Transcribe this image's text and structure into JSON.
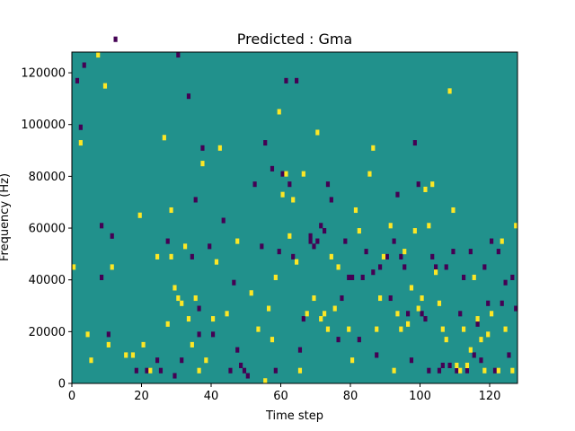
{
  "chart_data": {
    "type": "heatmap",
    "title": "Predicted : Gma",
    "xlabel": "Time step",
    "ylabel": "Frequency (Hz)",
    "xlim": [
      0,
      128
    ],
    "ylim": [
      0,
      128000
    ],
    "x_ticks": [
      0,
      20,
      40,
      60,
      80,
      100,
      120
    ],
    "y_ticks": [
      0,
      20000,
      40000,
      60000,
      80000,
      100000,
      120000
    ],
    "x_tick_labels": [
      "0",
      "20",
      "40",
      "60",
      "80",
      "100",
      "120"
    ],
    "y_tick_labels": [
      "0",
      "20000",
      "40000",
      "60000",
      "80000",
      "100000",
      "120000"
    ],
    "grid": false,
    "legend": "none",
    "colormap": {
      "low": "#440154",
      "mid": "#21918c",
      "high": "#fde725"
    },
    "background_value": 0,
    "bins": {
      "time_steps": 128,
      "freq_bins": 64,
      "freq_bin_hz": 2000
    },
    "cells_low": [
      [
        3,
        61
      ],
      [
        8,
        20
      ],
      [
        10,
        9
      ],
      [
        12,
        66
      ],
      [
        18,
        2
      ],
      [
        21,
        2
      ],
      [
        25,
        2
      ],
      [
        30,
        63
      ],
      [
        31,
        4
      ],
      [
        33,
        55
      ],
      [
        34,
        24
      ],
      [
        36,
        14
      ],
      [
        36,
        9
      ],
      [
        37,
        45
      ],
      [
        39,
        26
      ],
      [
        40,
        9
      ],
      [
        45,
        2
      ],
      [
        47,
        6
      ],
      [
        48,
        3
      ],
      [
        49,
        2
      ],
      [
        52,
        38
      ],
      [
        55,
        46
      ],
      [
        58,
        2
      ],
      [
        59,
        25
      ],
      [
        60,
        40
      ],
      [
        61,
        58
      ],
      [
        62,
        38
      ],
      [
        63,
        24
      ],
      [
        64,
        58
      ],
      [
        65,
        6
      ],
      [
        66,
        12
      ],
      [
        68,
        28
      ],
      [
        68,
        27
      ],
      [
        69,
        26
      ],
      [
        70,
        27
      ],
      [
        71,
        30
      ],
      [
        72,
        29
      ],
      [
        73,
        38
      ],
      [
        74,
        35
      ],
      [
        76,
        8
      ],
      [
        77,
        16
      ],
      [
        78,
        27
      ],
      [
        79,
        20
      ],
      [
        80,
        20
      ],
      [
        82,
        8
      ],
      [
        83,
        20
      ],
      [
        84,
        25
      ],
      [
        87,
        5
      ],
      [
        88,
        22
      ],
      [
        90,
        24
      ],
      [
        91,
        16
      ],
      [
        92,
        27
      ],
      [
        93,
        36
      ],
      [
        94,
        24
      ],
      [
        95,
        22
      ],
      [
        96,
        13
      ],
      [
        97,
        4
      ],
      [
        98,
        46
      ],
      [
        99,
        38
      ],
      [
        100,
        13
      ],
      [
        101,
        12
      ],
      [
        102,
        2
      ],
      [
        103,
        24
      ],
      [
        104,
        22
      ],
      [
        105,
        2
      ],
      [
        106,
        3
      ],
      [
        107,
        22
      ],
      [
        108,
        3
      ],
      [
        109,
        25
      ],
      [
        110,
        2
      ],
      [
        111,
        13
      ],
      [
        112,
        20
      ],
      [
        113,
        2
      ],
      [
        114,
        25
      ],
      [
        115,
        5
      ],
      [
        116,
        11
      ],
      [
        117,
        4
      ],
      [
        118,
        22
      ],
      [
        119,
        15
      ],
      [
        120,
        27
      ],
      [
        121,
        2
      ],
      [
        122,
        25
      ],
      [
        123,
        15
      ],
      [
        124,
        19
      ],
      [
        125,
        5
      ],
      [
        126,
        20
      ],
      [
        127,
        14
      ],
      [
        1,
        58
      ],
      [
        2,
        49
      ],
      [
        8,
        30
      ],
      [
        11,
        28
      ],
      [
        24,
        4
      ],
      [
        27,
        27
      ],
      [
        35,
        35
      ],
      [
        43,
        31
      ],
      [
        46,
        19
      ],
      [
        50,
        1
      ],
      [
        54,
        26
      ],
      [
        57,
        41
      ],
      [
        86,
        21
      ],
      [
        29,
        1
      ]
    ],
    "cells_high": [
      [
        0,
        22
      ],
      [
        2,
        46
      ],
      [
        4,
        9
      ],
      [
        5,
        4
      ],
      [
        9,
        57
      ],
      [
        10,
        7
      ],
      [
        11,
        22
      ],
      [
        15,
        5
      ],
      [
        17,
        5
      ],
      [
        20,
        7
      ],
      [
        22,
        2
      ],
      [
        24,
        24
      ],
      [
        26,
        47
      ],
      [
        27,
        11
      ],
      [
        28,
        24
      ],
      [
        29,
        18
      ],
      [
        30,
        16
      ],
      [
        31,
        15
      ],
      [
        32,
        26
      ],
      [
        33,
        12
      ],
      [
        34,
        7
      ],
      [
        35,
        16
      ],
      [
        36,
        2
      ],
      [
        38,
        4
      ],
      [
        40,
        12
      ],
      [
        42,
        45
      ],
      [
        44,
        13
      ],
      [
        47,
        27
      ],
      [
        51,
        17
      ],
      [
        56,
        14
      ],
      [
        57,
        8
      ],
      [
        58,
        20
      ],
      [
        59,
        52
      ],
      [
        60,
        36
      ],
      [
        61,
        40
      ],
      [
        62,
        28
      ],
      [
        63,
        35
      ],
      [
        64,
        23
      ],
      [
        65,
        2
      ],
      [
        66,
        40
      ],
      [
        67,
        13
      ],
      [
        69,
        16
      ],
      [
        72,
        13
      ],
      [
        73,
        10
      ],
      [
        74,
        24
      ],
      [
        75,
        14
      ],
      [
        76,
        22
      ],
      [
        79,
        10
      ],
      [
        80,
        4
      ],
      [
        81,
        33
      ],
      [
        82,
        29
      ],
      [
        85,
        40
      ],
      [
        86,
        45
      ],
      [
        87,
        10
      ],
      [
        88,
        16
      ],
      [
        89,
        24
      ],
      [
        91,
        30
      ],
      [
        92,
        2
      ],
      [
        93,
        13
      ],
      [
        94,
        10
      ],
      [
        95,
        25
      ],
      [
        96,
        11
      ],
      [
        97,
        18
      ],
      [
        98,
        29
      ],
      [
        99,
        14
      ],
      [
        100,
        16
      ],
      [
        101,
        37
      ],
      [
        102,
        30
      ],
      [
        103,
        38
      ],
      [
        104,
        21
      ],
      [
        105,
        15
      ],
      [
        106,
        10
      ],
      [
        107,
        8
      ],
      [
        108,
        56
      ],
      [
        109,
        33
      ],
      [
        110,
        3
      ],
      [
        111,
        2
      ],
      [
        112,
        10
      ],
      [
        113,
        3
      ],
      [
        114,
        6
      ],
      [
        115,
        20
      ],
      [
        116,
        12
      ],
      [
        117,
        8
      ],
      [
        118,
        2
      ],
      [
        119,
        9
      ],
      [
        120,
        13
      ],
      [
        122,
        2
      ],
      [
        123,
        27
      ],
      [
        124,
        10
      ],
      [
        126,
        2
      ],
      [
        127,
        30
      ],
      [
        7,
        63
      ],
      [
        19,
        32
      ],
      [
        37,
        42
      ],
      [
        53,
        10
      ],
      [
        71,
        12
      ],
      [
        41,
        23
      ],
      [
        70,
        48
      ],
      [
        55,
        0
      ],
      [
        28,
        33
      ]
    ]
  }
}
